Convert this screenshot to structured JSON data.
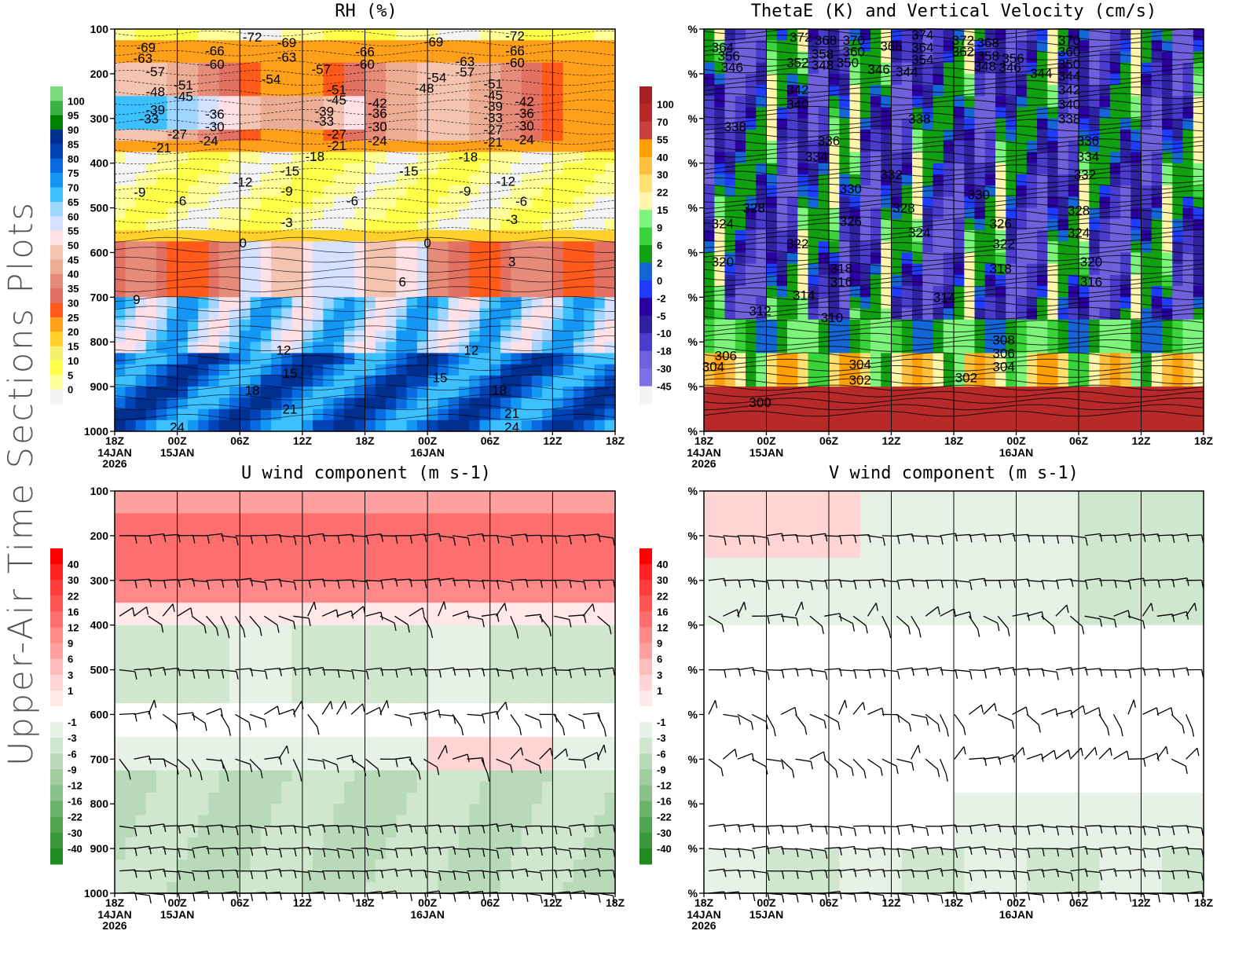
{
  "page_title": "Upper-Air Time Sections Plots",
  "chart_data": [
    {
      "id": "rh",
      "type": "heatmap",
      "title": "RH (%)",
      "xlabel": "",
      "ylabel": "",
      "x_ticks": [
        "18Z",
        "00Z",
        "06Z",
        "12Z",
        "18Z",
        "00Z",
        "06Z",
        "12Z",
        "18Z"
      ],
      "x_date_labels": [
        {
          "tick": 0,
          "lines": [
            "14JAN",
            "2026"
          ]
        },
        {
          "tick": 1,
          "lines": [
            "15JAN"
          ]
        },
        {
          "tick": 5,
          "lines": [
            "16JAN"
          ]
        }
      ],
      "y_ticks": [
        "100",
        "200",
        "300",
        "400",
        "500",
        "600",
        "700",
        "800",
        "900",
        "1000"
      ],
      "ylim": [
        1000,
        100
      ],
      "colorbar": {
        "labels": [
          "100",
          "95",
          "90",
          "85",
          "80",
          "75",
          "70",
          "65",
          "60",
          "55",
          "50",
          "45",
          "40",
          "35",
          "30",
          "25",
          "20",
          "15",
          "10",
          "5",
          "0"
        ],
        "colors": [
          "#7ddd7d",
          "#3cb043",
          "#008000",
          "#002f8f",
          "#0043b5",
          "#0a6be0",
          "#1496f5",
          "#3cc0ff",
          "#9fd6ff",
          "#d6e0ff",
          "#ffe0e6",
          "#f5c4b0",
          "#ecad95",
          "#e68a7a",
          "#e27162",
          "#ff5a1a",
          "#ffa01a",
          "#ffd12a",
          "#f5f06a",
          "#ffff4a",
          "#ffff9a",
          "#f4f4f4"
        ]
      },
      "contour_labels": [
        {
          "t": 0.5,
          "p": 140,
          "v": "-69"
        },
        {
          "t": 0.45,
          "p": 165,
          "v": "-63"
        },
        {
          "t": 0.65,
          "p": 195,
          "v": "-57"
        },
        {
          "t": 0.65,
          "p": 240,
          "v": "-48"
        },
        {
          "t": 0.65,
          "p": 280,
          "v": "-39"
        },
        {
          "t": 0.55,
          "p": 300,
          "v": "-33"
        },
        {
          "t": 1.0,
          "p": 335,
          "v": "-27"
        },
        {
          "t": 0.75,
          "p": 365,
          "v": "-21"
        },
        {
          "t": 1.6,
          "p": 148,
          "v": "-66"
        },
        {
          "t": 1.6,
          "p": 178,
          "v": "-60"
        },
        {
          "t": 1.1,
          "p": 225,
          "v": "-51"
        },
        {
          "t": 1.1,
          "p": 250,
          "v": "-45"
        },
        {
          "t": 1.6,
          "p": 290,
          "v": "-36"
        },
        {
          "t": 1.6,
          "p": 318,
          "v": "-30"
        },
        {
          "t": 1.5,
          "p": 350,
          "v": "-24"
        },
        {
          "t": 2.2,
          "p": 118,
          "v": "-72"
        },
        {
          "t": 2.75,
          "p": 130,
          "v": "-69"
        },
        {
          "t": 2.75,
          "p": 162,
          "v": "-63"
        },
        {
          "t": 2.5,
          "p": 212,
          "v": "-54"
        },
        {
          "t": 3.3,
          "p": 190,
          "v": "-57"
        },
        {
          "t": 3.55,
          "p": 235,
          "v": "-51"
        },
        {
          "t": 3.55,
          "p": 258,
          "v": "-45"
        },
        {
          "t": 3.35,
          "p": 284,
          "v": "-39"
        },
        {
          "t": 3.35,
          "p": 306,
          "v": "-33"
        },
        {
          "t": 3.55,
          "p": 335,
          "v": "-27"
        },
        {
          "t": 3.55,
          "p": 360,
          "v": "-21"
        },
        {
          "t": 3.2,
          "p": 385,
          "v": "-18"
        },
        {
          "t": 4.0,
          "p": 150,
          "v": "-66"
        },
        {
          "t": 4.0,
          "p": 178,
          "v": "-60"
        },
        {
          "t": 4.2,
          "p": 265,
          "v": "-42"
        },
        {
          "t": 4.2,
          "p": 288,
          "v": "-36"
        },
        {
          "t": 4.2,
          "p": 318,
          "v": "-30"
        },
        {
          "t": 4.2,
          "p": 350,
          "v": "-24"
        },
        {
          "t": 5.1,
          "p": 128,
          "v": "-69"
        },
        {
          "t": 5.15,
          "p": 208,
          "v": "-54"
        },
        {
          "t": 4.95,
          "p": 232,
          "v": "-48"
        },
        {
          "t": 5.6,
          "p": 172,
          "v": "-63"
        },
        {
          "t": 5.6,
          "p": 196,
          "v": "-57"
        },
        {
          "t": 6.05,
          "p": 222,
          "v": "-51"
        },
        {
          "t": 6.05,
          "p": 248,
          "v": "-45"
        },
        {
          "t": 6.05,
          "p": 272,
          "v": "-39"
        },
        {
          "t": 6.05,
          "p": 298,
          "v": "-33"
        },
        {
          "t": 6.05,
          "p": 325,
          "v": "-27"
        },
        {
          "t": 6.05,
          "p": 352,
          "v": "-21"
        },
        {
          "t": 6.4,
          "p": 115,
          "v": "-72"
        },
        {
          "t": 6.4,
          "p": 148,
          "v": "-66"
        },
        {
          "t": 6.4,
          "p": 175,
          "v": "-60"
        },
        {
          "t": 6.55,
          "p": 262,
          "v": "-42"
        },
        {
          "t": 6.55,
          "p": 288,
          "v": "-36"
        },
        {
          "t": 6.55,
          "p": 316,
          "v": "-30"
        },
        {
          "t": 6.55,
          "p": 347,
          "v": "-24"
        },
        {
          "t": 5.65,
          "p": 386,
          "v": "-18"
        },
        {
          "t": 2.8,
          "p": 417,
          "v": "-15"
        },
        {
          "t": 2.05,
          "p": 442,
          "v": "-12"
        },
        {
          "t": 0.4,
          "p": 465,
          "v": "-9"
        },
        {
          "t": 1.05,
          "p": 484,
          "v": "-6"
        },
        {
          "t": 2.75,
          "p": 462,
          "v": "-9"
        },
        {
          "t": 2.75,
          "p": 532,
          "v": "-3"
        },
        {
          "t": 3.8,
          "p": 484,
          "v": "-6"
        },
        {
          "t": 4.7,
          "p": 417,
          "v": "-15"
        },
        {
          "t": 6.25,
          "p": 440,
          "v": "-12"
        },
        {
          "t": 5.6,
          "p": 462,
          "v": "-9"
        },
        {
          "t": 6.5,
          "p": 485,
          "v": "-6"
        },
        {
          "t": 6.35,
          "p": 525,
          "v": "-3"
        },
        {
          "t": 2.05,
          "p": 578,
          "v": "0"
        },
        {
          "t": 5.0,
          "p": 578,
          "v": "0"
        },
        {
          "t": 6.35,
          "p": 620,
          "v": "3"
        },
        {
          "t": 4.6,
          "p": 665,
          "v": "6"
        },
        {
          "t": 0.35,
          "p": 705,
          "v": "9"
        },
        {
          "t": 2.7,
          "p": 818,
          "v": "12"
        },
        {
          "t": 5.7,
          "p": 818,
          "v": "12"
        },
        {
          "t": 2.8,
          "p": 870,
          "v": "15"
        },
        {
          "t": 5.2,
          "p": 880,
          "v": "15"
        },
        {
          "t": 2.2,
          "p": 908,
          "v": "18"
        },
        {
          "t": 6.15,
          "p": 908,
          "v": "18"
        },
        {
          "t": 2.8,
          "p": 950,
          "v": "21"
        },
        {
          "t": 6.35,
          "p": 960,
          "v": "21"
        },
        {
          "t": 1.0,
          "p": 990,
          "v": "24"
        },
        {
          "t": 6.35,
          "p": 990,
          "v": "24"
        }
      ]
    },
    {
      "id": "thetae",
      "type": "heatmap",
      "title": "ThetaE (K) and Vertical Velocity (cm/s)",
      "xlabel": "",
      "ylabel": "",
      "x_ticks": [
        "18Z",
        "00Z",
        "06Z",
        "12Z",
        "18Z",
        "00Z",
        "06Z",
        "12Z",
        "18Z"
      ],
      "x_date_labels": [
        {
          "tick": 0,
          "lines": [
            "14JAN",
            "2026"
          ]
        },
        {
          "tick": 1,
          "lines": [
            "15JAN"
          ]
        },
        {
          "tick": 5,
          "lines": [
            "16JAN"
          ]
        }
      ],
      "y_ticks": [
        "%",
        "%",
        "%",
        "%",
        "%",
        "%",
        "%",
        "%",
        "%",
        "%"
      ],
      "ylim": [
        1000,
        100
      ],
      "colorbar": {
        "labels": [
          "100",
          "70",
          "55",
          "40",
          "30",
          "22",
          "15",
          "9",
          "6",
          "2",
          "0",
          "-2",
          "-5",
          "-10",
          "-18",
          "-30",
          "-45"
        ],
        "colors": [
          "#a52323",
          "#b82a2a",
          "#c94040",
          "#ffa000",
          "#ffc040",
          "#ffe070",
          "#fff5aa",
          "#7df57d",
          "#3ad43a",
          "#10a010",
          "#1466d6",
          "#1e3cff",
          "#2a00a0",
          "#2e22a0",
          "#4a3ccc",
          "#7060dc",
          "#8070e8",
          "#f4f4f4"
        ]
      },
      "contour_labels": [
        {
          "t": 0.3,
          "p": 140,
          "v": "364"
        },
        {
          "t": 0.4,
          "p": 160,
          "v": "356"
        },
        {
          "t": 0.45,
          "p": 185,
          "v": "346"
        },
        {
          "t": 1.55,
          "p": 118,
          "v": "372"
        },
        {
          "t": 1.95,
          "p": 125,
          "v": "368"
        },
        {
          "t": 2.4,
          "p": 125,
          "v": "370"
        },
        {
          "t": 1.5,
          "p": 175,
          "v": "352"
        },
        {
          "t": 1.9,
          "p": 155,
          "v": "358"
        },
        {
          "t": 1.9,
          "p": 180,
          "v": "348"
        },
        {
          "t": 2.3,
          "p": 175,
          "v": "350"
        },
        {
          "t": 2.4,
          "p": 150,
          "v": "360"
        },
        {
          "t": 3.0,
          "p": 138,
          "v": "366"
        },
        {
          "t": 2.8,
          "p": 190,
          "v": "346"
        },
        {
          "t": 3.25,
          "p": 195,
          "v": "344"
        },
        {
          "t": 3.5,
          "p": 112,
          "v": "374"
        },
        {
          "t": 3.5,
          "p": 140,
          "v": "364"
        },
        {
          "t": 3.5,
          "p": 168,
          "v": "354"
        },
        {
          "t": 4.15,
          "p": 125,
          "v": "372"
        },
        {
          "t": 4.15,
          "p": 150,
          "v": "362"
        },
        {
          "t": 4.55,
          "p": 130,
          "v": "368"
        },
        {
          "t": 4.55,
          "p": 160,
          "v": "358"
        },
        {
          "t": 4.5,
          "p": 183,
          "v": "348"
        },
        {
          "t": 4.9,
          "p": 185,
          "v": "346"
        },
        {
          "t": 4.95,
          "p": 165,
          "v": "356"
        },
        {
          "t": 5.85,
          "p": 125,
          "v": "370"
        },
        {
          "t": 5.85,
          "p": 150,
          "v": "360"
        },
        {
          "t": 5.85,
          "p": 178,
          "v": "350"
        },
        {
          "t": 5.4,
          "p": 198,
          "v": "344"
        },
        {
          "t": 5.85,
          "p": 205,
          "v": "344"
        },
        {
          "t": 1.5,
          "p": 235,
          "v": "342"
        },
        {
          "t": 5.85,
          "p": 235,
          "v": "342"
        },
        {
          "t": 1.5,
          "p": 268,
          "v": "340"
        },
        {
          "t": 5.85,
          "p": 268,
          "v": "340"
        },
        {
          "t": 0.5,
          "p": 318,
          "v": "338"
        },
        {
          "t": 3.45,
          "p": 300,
          "v": "338"
        },
        {
          "t": 5.85,
          "p": 300,
          "v": "338"
        },
        {
          "t": 2.0,
          "p": 350,
          "v": "336"
        },
        {
          "t": 6.15,
          "p": 350,
          "v": "336"
        },
        {
          "t": 1.8,
          "p": 385,
          "v": "334"
        },
        {
          "t": 6.15,
          "p": 385,
          "v": "334"
        },
        {
          "t": 3.0,
          "p": 425,
          "v": "332"
        },
        {
          "t": 6.1,
          "p": 425,
          "v": "332"
        },
        {
          "t": 2.35,
          "p": 457,
          "v": "330"
        },
        {
          "t": 4.4,
          "p": 470,
          "v": "330"
        },
        {
          "t": 0.8,
          "p": 500,
          "v": "328"
        },
        {
          "t": 3.2,
          "p": 500,
          "v": "328"
        },
        {
          "t": 6.0,
          "p": 505,
          "v": "328"
        },
        {
          "t": 0.3,
          "p": 535,
          "v": "324"
        },
        {
          "t": 2.35,
          "p": 530,
          "v": "326"
        },
        {
          "t": 3.45,
          "p": 555,
          "v": "324"
        },
        {
          "t": 4.75,
          "p": 535,
          "v": "326"
        },
        {
          "t": 6.0,
          "p": 555,
          "v": "324"
        },
        {
          "t": 1.5,
          "p": 580,
          "v": "322"
        },
        {
          "t": 4.8,
          "p": 580,
          "v": "322"
        },
        {
          "t": 0.3,
          "p": 620,
          "v": "320"
        },
        {
          "t": 6.2,
          "p": 620,
          "v": "320"
        },
        {
          "t": 2.2,
          "p": 635,
          "v": "318"
        },
        {
          "t": 4.75,
          "p": 635,
          "v": "318"
        },
        {
          "t": 2.2,
          "p": 665,
          "v": "316"
        },
        {
          "t": 6.2,
          "p": 665,
          "v": "316"
        },
        {
          "t": 1.6,
          "p": 695,
          "v": "314"
        },
        {
          "t": 3.85,
          "p": 700,
          "v": "314"
        },
        {
          "t": 0.9,
          "p": 730,
          "v": "312"
        },
        {
          "t": 2.05,
          "p": 745,
          "v": "310"
        },
        {
          "t": 4.8,
          "p": 795,
          "v": "308"
        },
        {
          "t": 0.35,
          "p": 830,
          "v": "306"
        },
        {
          "t": 4.8,
          "p": 825,
          "v": "306"
        },
        {
          "t": 0.15,
          "p": 855,
          "v": "304"
        },
        {
          "t": 2.5,
          "p": 850,
          "v": "304"
        },
        {
          "t": 4.8,
          "p": 855,
          "v": "304"
        },
        {
          "t": 2.5,
          "p": 885,
          "v": "302"
        },
        {
          "t": 4.2,
          "p": 880,
          "v": "302"
        },
        {
          "t": 0.9,
          "p": 935,
          "v": "300"
        }
      ]
    },
    {
      "id": "u_wind",
      "type": "heatmap",
      "title": "U wind component (m s-1)",
      "xlabel": "",
      "ylabel": "",
      "x_ticks": [
        "18Z",
        "00Z",
        "06Z",
        "12Z",
        "18Z",
        "00Z",
        "06Z",
        "12Z",
        "18Z"
      ],
      "x_date_labels": [
        {
          "tick": 0,
          "lines": [
            "14JAN",
            "2026"
          ]
        },
        {
          "tick": 1,
          "lines": [
            "15JAN"
          ]
        },
        {
          "tick": 5,
          "lines": [
            "16JAN"
          ]
        }
      ],
      "y_ticks": [
        "100",
        "200",
        "300",
        "400",
        "500",
        "600",
        "700",
        "800",
        "900",
        "1000"
      ],
      "ylim": [
        1000,
        100
      ],
      "colorbar": {
        "labels": [
          "40",
          "30",
          "22",
          "16",
          "12",
          "9",
          "6",
          "3",
          "1",
          "-1",
          "-3",
          "-6",
          "-9",
          "-12",
          "-16",
          "-22",
          "-30",
          "-40"
        ],
        "colors": [
          "#ff0000",
          "#ff2222",
          "#ff3d3d",
          "#ff5555",
          "#ff6e6e",
          "#ff8888",
          "#ffa0a0",
          "#ffbcbc",
          "#ffd4d4",
          "#ffe8e8",
          "#ffffff",
          "#e6f2e6",
          "#cfe6cf",
          "#b8dab8",
          "#a0cea0",
          "#88c288",
          "#6cb46c",
          "#52a652",
          "#399839",
          "#1f8a1f"
        ]
      },
      "barb_levels": [
        200,
        300,
        380,
        500,
        600,
        700,
        850,
        900,
        950,
        1000
      ]
    },
    {
      "id": "v_wind",
      "type": "heatmap",
      "title": "V wind component (m s-1)",
      "xlabel": "",
      "ylabel": "",
      "x_ticks": [
        "18Z",
        "00Z",
        "06Z",
        "12Z",
        "18Z",
        "00Z",
        "06Z",
        "12Z",
        "18Z"
      ],
      "x_date_labels": [
        {
          "tick": 0,
          "lines": [
            "14JAN",
            "2026"
          ]
        },
        {
          "tick": 1,
          "lines": [
            "15JAN"
          ]
        },
        {
          "tick": 5,
          "lines": [
            "16JAN"
          ]
        }
      ],
      "y_ticks": [
        "%",
        "%",
        "%",
        "%",
        "%",
        "%",
        "%",
        "%",
        "%",
        "%"
      ],
      "ylim": [
        1000,
        100
      ],
      "colorbar": {
        "labels": [
          "40",
          "30",
          "22",
          "16",
          "12",
          "9",
          "6",
          "3",
          "1",
          "-1",
          "-3",
          "-6",
          "-9",
          "-12",
          "-16",
          "-22",
          "-30",
          "-40"
        ],
        "colors": [
          "#ff0000",
          "#ff2222",
          "#ff3d3d",
          "#ff5555",
          "#ff6e6e",
          "#ff8888",
          "#ffa0a0",
          "#ffbcbc",
          "#ffd4d4",
          "#ffe8e8",
          "#ffffff",
          "#e6f2e6",
          "#cfe6cf",
          "#b8dab8",
          "#a0cea0",
          "#88c288",
          "#6cb46c",
          "#52a652",
          "#399839",
          "#1f8a1f"
        ]
      },
      "barb_levels": [
        200,
        300,
        380,
        500,
        600,
        700,
        850,
        900,
        950,
        1000
      ]
    }
  ]
}
